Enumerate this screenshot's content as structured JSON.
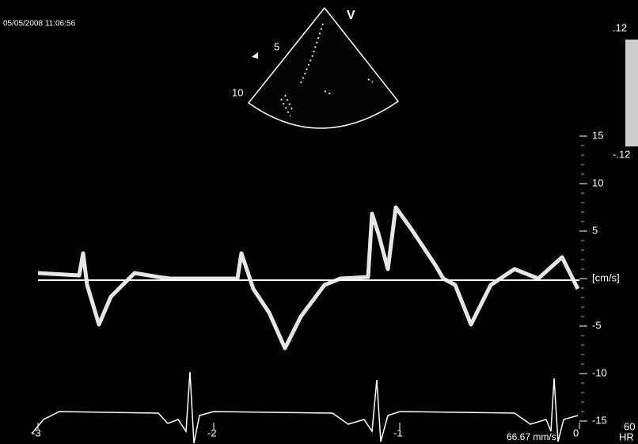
{
  "header": {
    "timestamp": "05/05/2008 11:06:56"
  },
  "sector": {
    "label": "V",
    "depth_labels": [
      "5",
      "10"
    ]
  },
  "color_scale": {
    "top": ".12",
    "bottom": "-.12"
  },
  "velocity_axis": {
    "labels": [
      "15",
      "10",
      "5",
      "[cm/s]",
      "-5",
      "-10",
      "-15"
    ]
  },
  "time_axis": {
    "labels": [
      "-3",
      "-2",
      "-1",
      "0"
    ]
  },
  "sweep_speed": "66.67 mm/s",
  "heart_rate": {
    "value": "60",
    "label": "HR"
  }
}
